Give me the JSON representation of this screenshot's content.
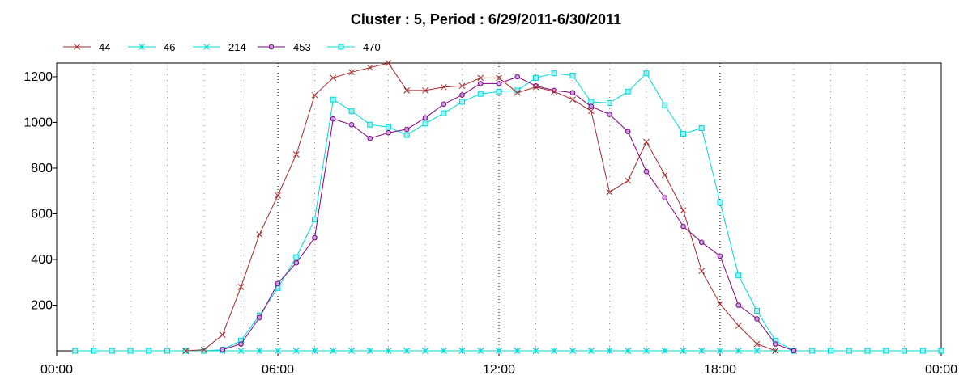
{
  "chart_data": {
    "type": "line",
    "title": "Cluster : 5, Period : 6/29/2011-6/30/2011",
    "xlabel": "",
    "ylabel": "",
    "x_unit": "hours",
    "xlim": [
      0,
      24
    ],
    "ylim": [
      0,
      1260
    ],
    "x_ticks": [
      {
        "value": 0,
        "label": "00:00"
      },
      {
        "value": 6,
        "label": "06:00"
      },
      {
        "value": 12,
        "label": "12:00"
      },
      {
        "value": 18,
        "label": "18:00"
      },
      {
        "value": 24,
        "label": "00:00"
      }
    ],
    "y_ticks": [
      {
        "value": 200,
        "label": "200"
      },
      {
        "value": 400,
        "label": "400"
      },
      {
        "value": 600,
        "label": "600"
      },
      {
        "value": 800,
        "label": "800"
      },
      {
        "value": 1000,
        "label": "1000"
      },
      {
        "value": 1200,
        "label": "1200"
      }
    ],
    "grid": {
      "major_x": true,
      "minor_x": true,
      "y": false
    },
    "legend_position": "top-left",
    "series": [
      {
        "name": "44",
        "color": "#a52a2a",
        "marker": "x",
        "points": [
          [
            3.5,
            0
          ],
          [
            4,
            5
          ],
          [
            4.5,
            70
          ],
          [
            5,
            280
          ],
          [
            5.5,
            510
          ],
          [
            6,
            680
          ],
          [
            6.5,
            860
          ],
          [
            7,
            1120
          ],
          [
            7.5,
            1195
          ],
          [
            8,
            1220
          ],
          [
            8.5,
            1240
          ],
          [
            9,
            1260
          ],
          [
            9.5,
            1140
          ],
          [
            10,
            1140
          ],
          [
            10.5,
            1155
          ],
          [
            11,
            1160
          ],
          [
            11.5,
            1195
          ],
          [
            12,
            1195
          ],
          [
            12.5,
            1130
          ],
          [
            13,
            1155
          ],
          [
            13.5,
            1135
          ],
          [
            14,
            1100
          ],
          [
            14.5,
            1050
          ],
          [
            15,
            695
          ],
          [
            15.5,
            745
          ],
          [
            16,
            915
          ],
          [
            16.5,
            770
          ],
          [
            17,
            615
          ],
          [
            17.5,
            350
          ],
          [
            18,
            205
          ],
          [
            18.5,
            110
          ],
          [
            19,
            30
          ],
          [
            19.5,
            0
          ]
        ]
      },
      {
        "name": "46",
        "color": "#00d8d8",
        "marker": "star",
        "points": [
          [
            0.5,
            0
          ],
          [
            1,
            0
          ],
          [
            1.5,
            0
          ],
          [
            2,
            0
          ],
          [
            2.5,
            0
          ],
          [
            3,
            0
          ],
          [
            3.5,
            0
          ],
          [
            4,
            0
          ],
          [
            4.5,
            0
          ],
          [
            5,
            0
          ],
          [
            5.5,
            0
          ],
          [
            6,
            0
          ],
          [
            6.5,
            0
          ],
          [
            7,
            0
          ],
          [
            7.5,
            0
          ],
          [
            8,
            0
          ],
          [
            8.5,
            0
          ],
          [
            9,
            0
          ],
          [
            9.5,
            0
          ],
          [
            10,
            0
          ],
          [
            10.5,
            0
          ],
          [
            11,
            0
          ],
          [
            11.5,
            0
          ],
          [
            12,
            0
          ],
          [
            12.5,
            0
          ],
          [
            13,
            0
          ],
          [
            13.5,
            0
          ],
          [
            14,
            0
          ],
          [
            14.5,
            0
          ],
          [
            15,
            0
          ],
          [
            15.5,
            0
          ],
          [
            16,
            0
          ],
          [
            16.5,
            0
          ],
          [
            17,
            0
          ],
          [
            17.5,
            0
          ],
          [
            18,
            0
          ],
          [
            18.5,
            0
          ],
          [
            19,
            0
          ],
          [
            19.5,
            0
          ],
          [
            20,
            0
          ],
          [
            20.5,
            0
          ],
          [
            21,
            0
          ],
          [
            21.5,
            0
          ],
          [
            22,
            0
          ],
          [
            22.5,
            0
          ],
          [
            23,
            0
          ],
          [
            23.5,
            0
          ],
          [
            24,
            0
          ]
        ]
      },
      {
        "name": "214",
        "color": "#00d8d8",
        "marker": "x",
        "points": [
          [
            0.5,
            0
          ],
          [
            1,
            0
          ],
          [
            1.5,
            0
          ],
          [
            2,
            0
          ],
          [
            2.5,
            0
          ],
          [
            3,
            0
          ],
          [
            3.5,
            0
          ],
          [
            4,
            0
          ],
          [
            4.5,
            0
          ],
          [
            5,
            0
          ],
          [
            5.5,
            0
          ],
          [
            6,
            0
          ],
          [
            6.5,
            0
          ],
          [
            7,
            0
          ],
          [
            7.5,
            0
          ],
          [
            8,
            0
          ],
          [
            8.5,
            0
          ],
          [
            9,
            0
          ],
          [
            9.5,
            0
          ],
          [
            10,
            0
          ],
          [
            10.5,
            0
          ],
          [
            11,
            0
          ],
          [
            11.5,
            0
          ],
          [
            12,
            0
          ],
          [
            12.5,
            0
          ],
          [
            13,
            0
          ],
          [
            13.5,
            0
          ],
          [
            14,
            0
          ],
          [
            14.5,
            0
          ],
          [
            15,
            0
          ],
          [
            15.5,
            0
          ],
          [
            16,
            0
          ],
          [
            16.5,
            0
          ],
          [
            17,
            0
          ],
          [
            17.5,
            0
          ],
          [
            18,
            0
          ],
          [
            18.5,
            0
          ],
          [
            19,
            0
          ],
          [
            19.5,
            0
          ],
          [
            20,
            0
          ],
          [
            20.5,
            0
          ],
          [
            21,
            0
          ],
          [
            21.5,
            0
          ],
          [
            22,
            0
          ],
          [
            22.5,
            0
          ],
          [
            23,
            0
          ],
          [
            23.5,
            0
          ],
          [
            24,
            0
          ]
        ]
      },
      {
        "name": "453",
        "color": "#800080",
        "marker": "circle",
        "points": [
          [
            4.5,
            5
          ],
          [
            5,
            30
          ],
          [
            5.5,
            145
          ],
          [
            6,
            295
          ],
          [
            6.5,
            385
          ],
          [
            7,
            495
          ],
          [
            7.5,
            1015
          ],
          [
            8,
            990
          ],
          [
            8.5,
            930
          ],
          [
            9,
            955
          ],
          [
            9.5,
            970
          ],
          [
            10,
            1020
          ],
          [
            10.5,
            1080
          ],
          [
            11,
            1120
          ],
          [
            11.5,
            1170
          ],
          [
            12,
            1170
          ],
          [
            12.5,
            1200
          ],
          [
            13,
            1160
          ],
          [
            13.5,
            1140
          ],
          [
            14,
            1130
          ],
          [
            14.5,
            1070
          ],
          [
            15,
            1035
          ],
          [
            15.5,
            960
          ],
          [
            16,
            785
          ],
          [
            16.5,
            670
          ],
          [
            17,
            545
          ],
          [
            17.5,
            475
          ],
          [
            18,
            415
          ],
          [
            18.5,
            200
          ],
          [
            19,
            140
          ],
          [
            19.5,
            30
          ],
          [
            20,
            0
          ]
        ]
      },
      {
        "name": "470",
        "color": "#00d8d8",
        "marker": "square",
        "points": [
          [
            0.5,
            0
          ],
          [
            1,
            0
          ],
          [
            1.5,
            0
          ],
          [
            2,
            0
          ],
          [
            2.5,
            0
          ],
          [
            3,
            0
          ],
          [
            3.5,
            0
          ],
          [
            4,
            0
          ],
          [
            4.5,
            5
          ],
          [
            5,
            45
          ],
          [
            5.5,
            155
          ],
          [
            6,
            275
          ],
          [
            6.5,
            410
          ],
          [
            7,
            575
          ],
          [
            7.5,
            1100
          ],
          [
            8,
            1050
          ],
          [
            8.5,
            990
          ],
          [
            9,
            980
          ],
          [
            9.5,
            945
          ],
          [
            10,
            995
          ],
          [
            10.5,
            1040
          ],
          [
            11,
            1090
          ],
          [
            11.5,
            1125
          ],
          [
            12,
            1135
          ],
          [
            12.5,
            1140
          ],
          [
            13,
            1195
          ],
          [
            13.5,
            1215
          ],
          [
            14,
            1205
          ],
          [
            14.5,
            1090
          ],
          [
            15,
            1085
          ],
          [
            15.5,
            1135
          ],
          [
            16,
            1215
          ],
          [
            16.5,
            1075
          ],
          [
            17,
            950
          ],
          [
            17.5,
            975
          ],
          [
            18,
            650
          ],
          [
            18.5,
            330
          ],
          [
            19,
            175
          ],
          [
            19.5,
            45
          ],
          [
            20,
            0
          ],
          [
            20.5,
            0
          ],
          [
            21,
            0
          ],
          [
            21.5,
            0
          ],
          [
            22,
            0
          ],
          [
            22.5,
            0
          ],
          [
            23,
            0
          ],
          [
            23.5,
            0
          ],
          [
            24,
            0
          ]
        ]
      }
    ]
  }
}
